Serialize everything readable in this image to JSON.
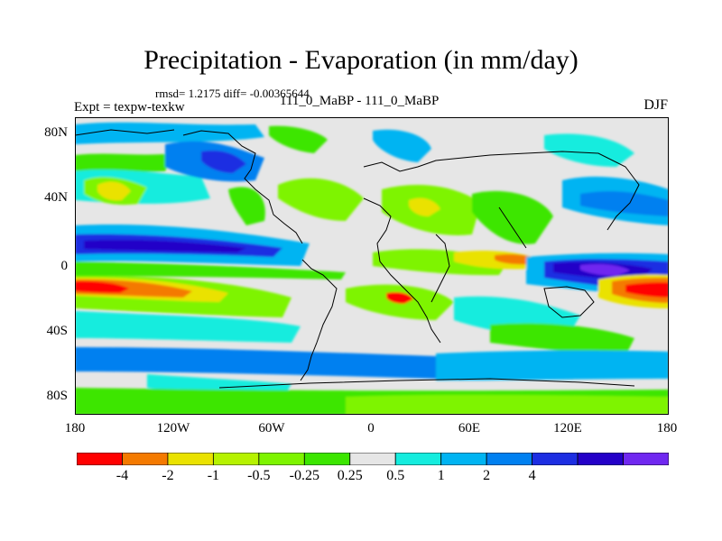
{
  "title": "Precipitation - Evaporation (in mm/day)",
  "stats_line": "rmsd= 1.2175  diff= -0.00365644",
  "left_label": "Expt = texpw-texkw",
  "center_label": "111_0_MaBP - 111_0_MaBP",
  "season_label": "DJF",
  "y_ticks": [
    "80N",
    "40N",
    "0",
    "40S",
    "80S"
  ],
  "x_ticks": [
    "180",
    "120W",
    "60W",
    "0",
    "60E",
    "120E",
    "180"
  ],
  "colorbar": {
    "colors": [
      "#ff0000",
      "#f47a00",
      "#eae200",
      "#b6f200",
      "#7ef400",
      "#3ce600",
      "#e6e6e6",
      "#15ecde",
      "#00b4f2",
      "#0080f0",
      "#1d2ee2",
      "#2400c8",
      "#7028f0"
    ],
    "labels": [
      "-4",
      "-2",
      "-1",
      "-0.5",
      "-0.25",
      "0.25",
      "0.5",
      "1",
      "2",
      "4"
    ]
  }
}
